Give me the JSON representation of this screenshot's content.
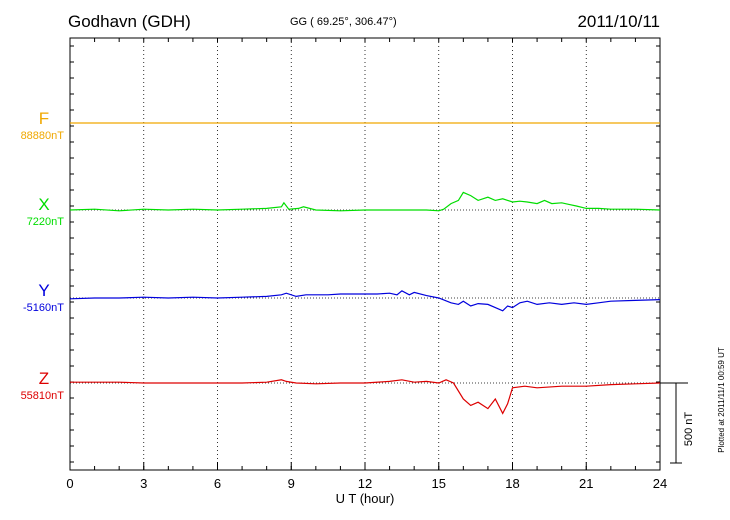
{
  "header": {
    "station": "Godhavn (GDH)",
    "coords": "GG ( 69.25°, 306.47°)",
    "date": "2011/10/11"
  },
  "side_note": "Plotted at 2011/11/1 00:59 UT",
  "chart_data": {
    "type": "line",
    "title": "Godhavn (GDH)",
    "xlabel": "U T (hour)",
    "xlim": [
      0,
      24
    ],
    "xticks": [
      0,
      3,
      6,
      9,
      12,
      15,
      18,
      21,
      24
    ],
    "grid": "dotted vertical",
    "scale_bar_label": "500 nT",
    "scale_bar_nT": 500,
    "series": [
      {
        "name": "F",
        "baseline_label": "88880nT",
        "color": "#f0a800",
        "x": [
          0,
          24
        ],
        "offset_nT": [
          0,
          0
        ]
      },
      {
        "name": "X",
        "baseline_label": "7220nT",
        "color": "#00dd00",
        "x": [
          0,
          1,
          2,
          3,
          4,
          5,
          6,
          7,
          8,
          8.6,
          8.7,
          8.9,
          9.3,
          9.5,
          10,
          11,
          12,
          13,
          14,
          14.5,
          15,
          15.2,
          15.5,
          15.8,
          16,
          16.3,
          16.6,
          17,
          17.3,
          17.6,
          18,
          18.3,
          18.6,
          19,
          19.3,
          19.6,
          20,
          20.3,
          20.6,
          21,
          21.5,
          22,
          23,
          24
        ],
        "offset_nT": [
          0,
          5,
          -5,
          5,
          0,
          5,
          0,
          5,
          10,
          20,
          45,
          5,
          10,
          20,
          0,
          -5,
          0,
          0,
          0,
          0,
          -5,
          5,
          40,
          60,
          110,
          90,
          60,
          80,
          60,
          70,
          50,
          55,
          50,
          40,
          60,
          40,
          45,
          35,
          25,
          10,
          10,
          5,
          5,
          0
        ]
      },
      {
        "name": "Y",
        "baseline_label": "-5160nT",
        "color": "#0000dd",
        "x": [
          0,
          1,
          2,
          3,
          4,
          5,
          6,
          7,
          8,
          8.6,
          8.8,
          9.2,
          9.6,
          10,
          10.5,
          11,
          11.5,
          12,
          12.5,
          13,
          13.3,
          13.5,
          13.8,
          14,
          14.5,
          15,
          15.5,
          15.8,
          16,
          16.3,
          16.6,
          17,
          17.3,
          17.6,
          17.8,
          18,
          18.3,
          18.6,
          19,
          19.5,
          20,
          20.5,
          21,
          21.5,
          22,
          23,
          24
        ],
        "offset_nT": [
          -5,
          0,
          0,
          5,
          0,
          5,
          0,
          5,
          10,
          20,
          30,
          10,
          20,
          20,
          20,
          25,
          25,
          25,
          25,
          30,
          20,
          45,
          20,
          35,
          15,
          0,
          -30,
          -40,
          -20,
          -50,
          -35,
          -40,
          -60,
          -80,
          -50,
          -60,
          -30,
          -20,
          -40,
          -30,
          -40,
          -30,
          -40,
          -30,
          -20,
          -15,
          -10
        ]
      },
      {
        "name": "Z",
        "baseline_label": "55810nT",
        "color": "#dd0000",
        "x": [
          0,
          1,
          2,
          3,
          4,
          5,
          6,
          7,
          8,
          8.6,
          8.8,
          9.2,
          10,
          11,
          12,
          13,
          13.5,
          14,
          14.5,
          15,
          15.3,
          15.6,
          16,
          16.3,
          16.6,
          17,
          17.3,
          17.6,
          17.8,
          18,
          18.5,
          19,
          20,
          21,
          22,
          23,
          24
        ],
        "offset_nT": [
          5,
          5,
          5,
          0,
          0,
          0,
          0,
          0,
          5,
          20,
          10,
          0,
          -5,
          0,
          0,
          10,
          20,
          5,
          10,
          0,
          20,
          0,
          -100,
          -140,
          -120,
          -160,
          -100,
          -190,
          -130,
          -30,
          -20,
          -30,
          -20,
          -20,
          -10,
          -5,
          0
        ]
      }
    ]
  }
}
